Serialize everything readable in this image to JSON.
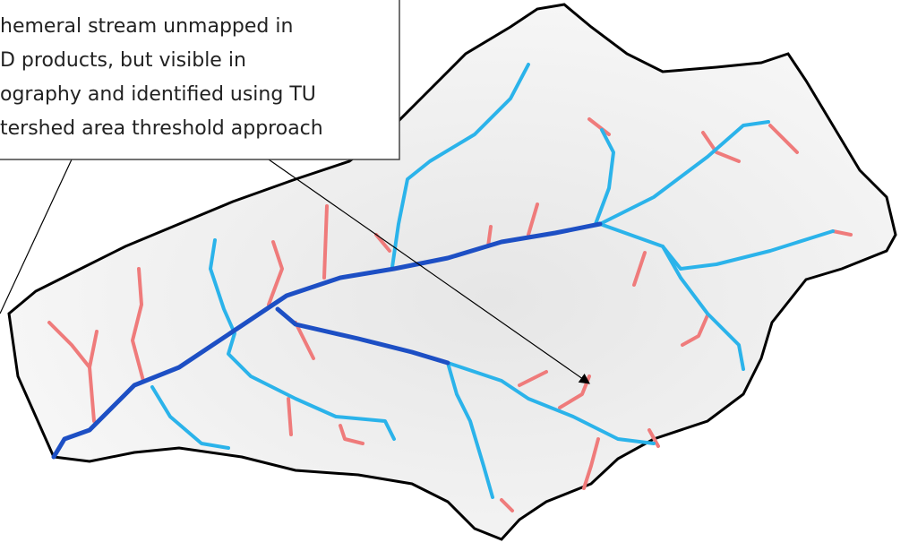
{
  "annotation": {
    "lines": [
      "hemeral stream unmapped in",
      "D products, but visible in",
      "ography and identified using TU",
      "tershed area threshold approach"
    ]
  }
}
